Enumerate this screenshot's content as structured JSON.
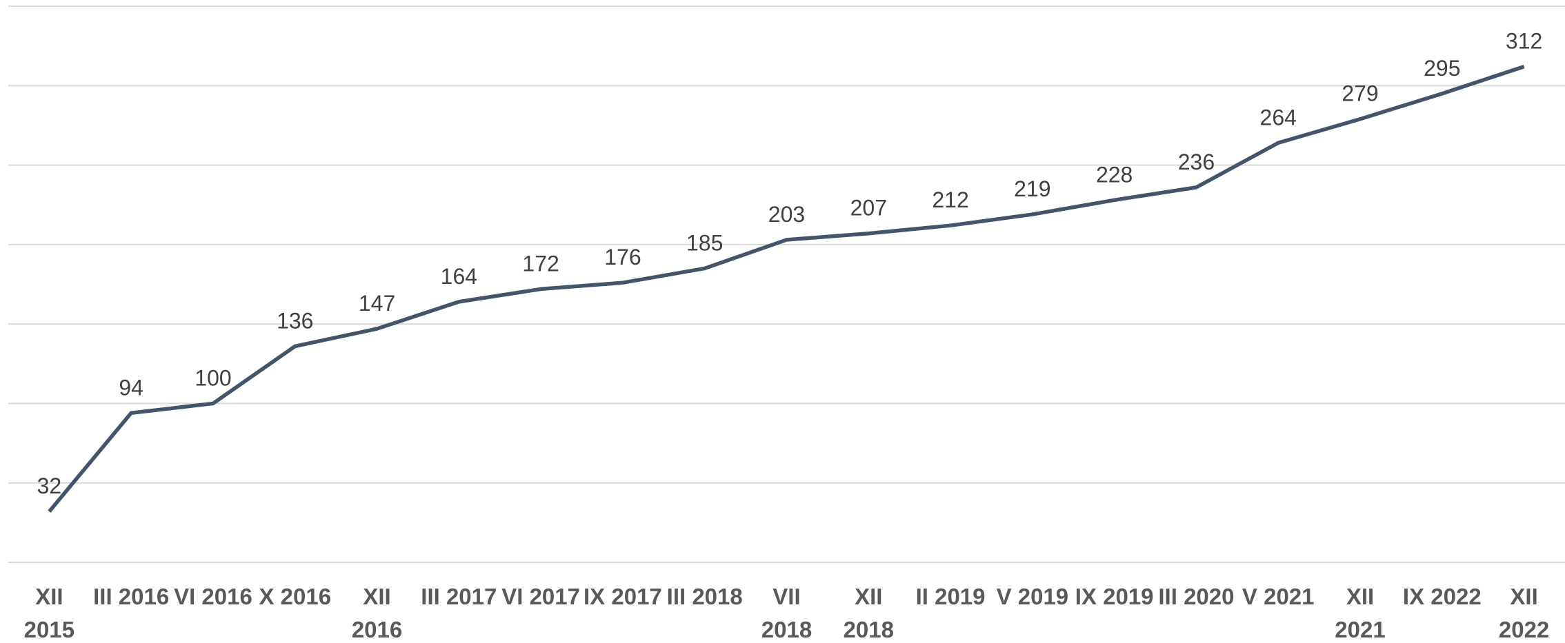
{
  "chart_data": {
    "type": "line",
    "categories": [
      "XII 2015",
      "III 2016",
      "VI 2016",
      "X 2016",
      "XII 2016",
      "III 2017",
      "VI 2017",
      "IX 2017",
      "III 2018",
      "VII 2018",
      "XII 2018",
      "II 2019",
      "V 2019",
      "IX 2019",
      "III 2020",
      "V 2021",
      "XII 2021",
      "IX 2022",
      "XII 2022"
    ],
    "series": [
      {
        "color": "#44546a",
        "values": [
          32,
          94,
          100,
          136,
          147,
          164,
          172,
          176,
          185,
          203,
          207,
          212,
          219,
          228,
          236,
          264,
          279,
          295,
          312
        ]
      }
    ],
    "ylim": [
      0,
      350
    ],
    "yticks": [
      0,
      50,
      100,
      150,
      200,
      250,
      300,
      350
    ],
    "grid": true
  }
}
